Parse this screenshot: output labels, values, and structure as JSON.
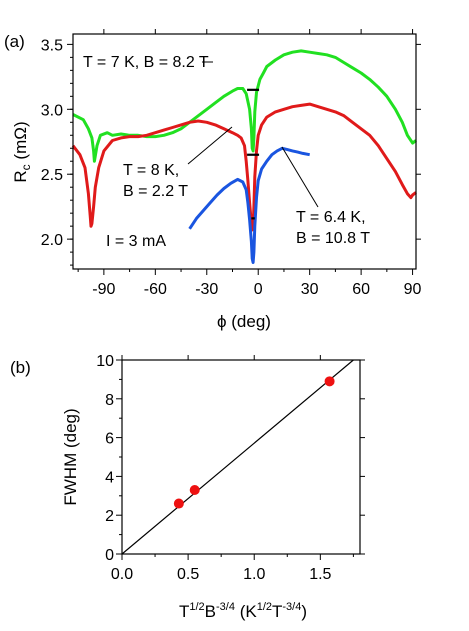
{
  "chart_data": [
    {
      "panel_label": "(a)",
      "type": "line",
      "xlabel": "ϕ (deg)",
      "ylabel": {
        "main": "R",
        "sub": "c",
        "unit": " (mΩ)"
      },
      "xlim": [
        -108,
        92
      ],
      "ylim": [
        1.77,
        3.58
      ],
      "xticks": [
        -90,
        -60,
        -30,
        0,
        30,
        60,
        90
      ],
      "yticks": [
        2.0,
        2.5,
        3.0,
        3.5
      ],
      "ytick_labels": [
        "2.0",
        "2.5",
        "3.0",
        "3.5"
      ],
      "current_label": "I = 3 mA",
      "series": [
        {
          "color": "#21e021",
          "label_lines": [
            "T = 7 K, B = 8.2 T"
          ],
          "x": [
            -108,
            -102,
            -99,
            -97,
            -96,
            -95.5,
            -94,
            -92,
            -88,
            -85,
            -80,
            -75,
            -70,
            -65,
            -60,
            -55,
            -50,
            -45,
            -40,
            -35,
            -30,
            -25,
            -20,
            -15,
            -12,
            -9,
            -7,
            -5,
            -4,
            -3.5,
            -3,
            -2.5,
            -2,
            -1,
            0,
            1,
            3,
            5,
            10,
            15,
            20,
            25,
            30,
            35,
            40,
            45,
            50,
            55,
            60,
            65,
            70,
            75,
            80,
            84,
            87,
            89,
            90,
            92
          ],
          "y": [
            2.96,
            2.92,
            2.85,
            2.78,
            2.68,
            2.6,
            2.72,
            2.8,
            2.82,
            2.8,
            2.81,
            2.8,
            2.8,
            2.79,
            2.79,
            2.8,
            2.82,
            2.85,
            2.9,
            2.95,
            3.0,
            3.05,
            3.1,
            3.14,
            3.16,
            3.16,
            3.12,
            3.0,
            2.85,
            2.7,
            2.68,
            2.78,
            2.98,
            3.13,
            3.18,
            3.23,
            3.28,
            3.33,
            3.38,
            3.42,
            3.44,
            3.45,
            3.44,
            3.43,
            3.42,
            3.4,
            3.36,
            3.32,
            3.28,
            3.23,
            3.17,
            3.1,
            3.0,
            2.9,
            2.8,
            2.76,
            2.74,
            2.76
          ]
        },
        {
          "color": "#e01a1a",
          "label_lines": [
            "T = 8 K,",
            "B = 2.2 T"
          ],
          "x": [
            -108,
            -104,
            -101,
            -99,
            -98,
            -97.5,
            -97,
            -96,
            -95,
            -93,
            -90,
            -85,
            -80,
            -75,
            -70,
            -65,
            -60,
            -55,
            -50,
            -45,
            -40,
            -35,
            -30,
            -25,
            -20,
            -15,
            -12,
            -10,
            -8,
            -7,
            -6,
            -5,
            -4,
            -3.5,
            -3,
            -2.5,
            -2,
            -1,
            0,
            2,
            5,
            10,
            15,
            20,
            25,
            30,
            35,
            40,
            45,
            50,
            55,
            60,
            65,
            70,
            75,
            80,
            84,
            87,
            89,
            90,
            92
          ],
          "y": [
            2.72,
            2.65,
            2.55,
            2.35,
            2.18,
            2.1,
            2.12,
            2.25,
            2.4,
            2.55,
            2.68,
            2.76,
            2.78,
            2.79,
            2.79,
            2.8,
            2.82,
            2.84,
            2.86,
            2.88,
            2.9,
            2.91,
            2.9,
            2.88,
            2.85,
            2.82,
            2.8,
            2.78,
            2.72,
            2.6,
            2.45,
            2.28,
            2.12,
            2.07,
            2.09,
            2.25,
            2.48,
            2.68,
            2.8,
            2.88,
            2.94,
            2.98,
            3.0,
            3.02,
            3.03,
            3.04,
            3.02,
            3.0,
            2.98,
            2.95,
            2.9,
            2.85,
            2.8,
            2.72,
            2.62,
            2.52,
            2.42,
            2.35,
            2.32,
            2.34,
            2.36
          ]
        },
        {
          "color": "#1a55e0",
          "label_lines": [
            "T = 6.4 K,",
            "B = 10.8 T"
          ],
          "x": [
            -40,
            -36,
            -32,
            -28,
            -24,
            -20,
            -16,
            -12,
            -9,
            -7,
            -6,
            -5,
            -4,
            -3.5,
            -3,
            -2.5,
            -2,
            -1,
            0,
            2,
            5,
            8,
            11,
            14,
            17,
            20,
            23,
            26,
            30
          ],
          "y": [
            2.08,
            2.16,
            2.22,
            2.28,
            2.34,
            2.39,
            2.43,
            2.46,
            2.44,
            2.38,
            2.28,
            2.15,
            1.98,
            1.85,
            1.82,
            1.9,
            2.1,
            2.32,
            2.45,
            2.54,
            2.6,
            2.65,
            2.68,
            2.7,
            2.69,
            2.68,
            2.67,
            2.66,
            2.65
          ]
        }
      ],
      "fwhm_markers": [
        {
          "x": -3,
          "half_width": 3.5,
          "y": 3.15
        },
        {
          "x": -3,
          "half_width": 3.5,
          "y": 2.65
        },
        {
          "x": -3,
          "half_width": 0,
          "y": 2.16
        }
      ]
    },
    {
      "panel_label": "(b)",
      "type": "scatter",
      "xlabel": {
        "prefix": "T",
        "sup1": "1/2",
        "mid": "B",
        "sup2": "-3/4",
        "open": " (K",
        "sup3": "1/2",
        "unitB": "T",
        "sup4": "-3/4",
        "close": ")"
      },
      "ylabel": "FWHM (deg)",
      "xlim": [
        0,
        1.8
      ],
      "ylim": [
        0,
        10
      ],
      "xticks": [
        0.0,
        0.5,
        1.0,
        1.5
      ],
      "xtick_labels": [
        "0.0",
        "0.5",
        "1.0",
        "1.5"
      ],
      "yticks": [
        0,
        2,
        4,
        6,
        8,
        10
      ],
      "ytick_labels": [
        "0",
        "2",
        "4",
        "6",
        "8",
        "10"
      ],
      "points": {
        "x": [
          0.43,
          0.55,
          1.57
        ],
        "y": [
          2.6,
          3.3,
          8.9
        ],
        "color": "#ee1111"
      },
      "fit_line": {
        "x": [
          0,
          1.75
        ],
        "y": [
          0,
          10
        ]
      }
    }
  ]
}
